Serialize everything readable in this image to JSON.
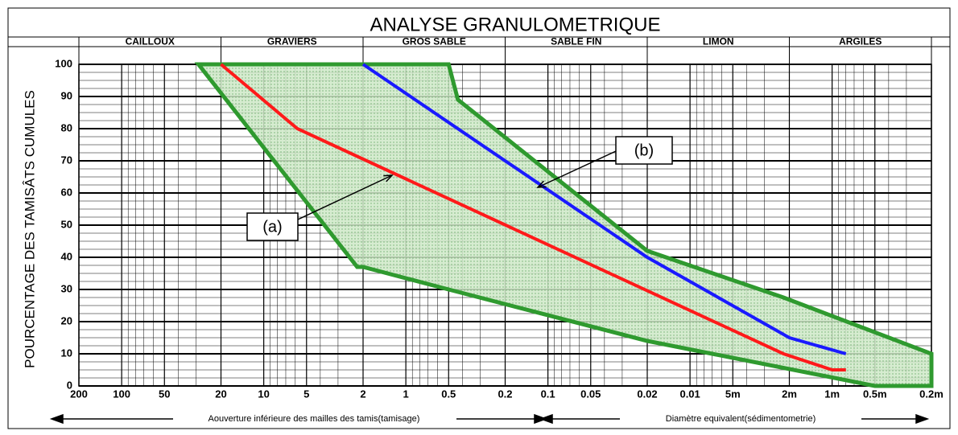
{
  "chart_data": {
    "type": "line",
    "title": "ANALYSE GRANULOMETRIQUE",
    "ylabel": "POURCENTAGE DES TAMISÂTS CUMULES",
    "xlabel_left": "Aouverture inférieure des mailles des tamis(tamisage)",
    "xlabel_right": "Diamètre equivalent(sédimentometrie)",
    "xscale": "log",
    "xlim": [
      200,
      0.0002
    ],
    "ylim": [
      0,
      100
    ],
    "xticks": [
      200,
      100,
      50,
      20,
      10,
      5,
      2,
      1,
      0.5,
      0.2,
      0.1,
      0.05,
      0.02,
      0.01,
      {
        "value": 0.005,
        "label": "5m"
      },
      {
        "value": 0.002,
        "label": "2m"
      },
      {
        "value": 0.001,
        "label": "1m"
      },
      {
        "value": 0.0005,
        "label": "0.5m"
      },
      {
        "value": 0.0002,
        "label": "0.2m"
      }
    ],
    "yticks": [
      0,
      10,
      20,
      30,
      40,
      50,
      60,
      70,
      80,
      90,
      100
    ],
    "grid": true,
    "zones": [
      {
        "name": "CAILLOUX",
        "from": 200,
        "to": 20
      },
      {
        "name": "GRAVIERS",
        "from": 20,
        "to": 2
      },
      {
        "name": "GROS SABLE",
        "from": 2,
        "to": 0.2
      },
      {
        "name": "SABLE FIN",
        "from": 0.2,
        "to": 0.02
      },
      {
        "name": "LIMON",
        "from": 0.02,
        "to": 0.002
      },
      {
        "name": "ARGILES",
        "from": 0.002,
        "to": 0.0002
      }
    ],
    "envelope": {
      "color": "#2f9a2f",
      "fill": "#cfe9c8",
      "x": [
        28.8,
        0.5,
        0.43,
        0.02,
        0.0022,
        0.0002,
        0.0002,
        0.0005,
        0.02,
        0.5,
        2,
        2.2
      ],
      "values": [
        100,
        100,
        89,
        42,
        27.5,
        10,
        0,
        0,
        14,
        30,
        37,
        37
      ]
    },
    "series": [
      {
        "name": "(a)",
        "color": "#ff1a1a",
        "x": [
          20,
          5.8,
          0.0022,
          0.001,
          0.0008
        ],
        "values": [
          100,
          80,
          10,
          5,
          5
        ]
      },
      {
        "name": "(b)",
        "color": "#1a1aff",
        "x": [
          2,
          0.02,
          0.002,
          0.0008
        ],
        "values": [
          100,
          40,
          15,
          10
        ]
      }
    ]
  }
}
